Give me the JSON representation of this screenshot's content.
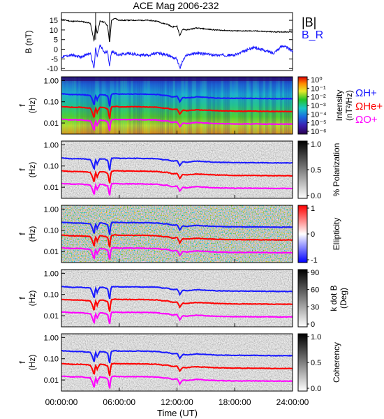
{
  "figure": {
    "title": "ACE Mag 2006-232",
    "xlabel": "Time (UT)",
    "x_ticks": [
      "00:00:00",
      "06:00:00",
      "12:00:00",
      "18:00:00",
      "24:00:00"
    ],
    "x_tick_hours": [
      0,
      6,
      12,
      18,
      24
    ],
    "x_range_hours": [
      0,
      24
    ]
  },
  "chart_data": [
    {
      "type": "line",
      "title": "ACE Mag 2006-232",
      "ylabel": "B (nT)",
      "y_ticks": [
        "15",
        "10",
        "5",
        "0",
        "-5",
        "-10"
      ],
      "y_tick_values": [
        15,
        10,
        5,
        0,
        -5,
        -10
      ],
      "ylim": [
        -11,
        19
      ],
      "legend": [
        "|B|",
        "B_R"
      ],
      "legend_placement": "right",
      "series": [
        {
          "name": "|B|",
          "color": "#000000",
          "x": [
            0,
            1,
            2,
            3,
            3.4,
            3.55,
            3.7,
            4,
            4.5,
            4.8,
            5.0,
            5.2,
            5.6,
            6,
            7,
            8,
            9,
            10,
            10.5,
            11,
            11.5,
            12,
            12.3,
            12.6,
            13,
            14,
            16,
            18,
            20,
            22,
            24
          ],
          "values": [
            15.5,
            14.5,
            14.5,
            13.5,
            4,
            13,
            8,
            14.5,
            14,
            12,
            3,
            15,
            16,
            15,
            15,
            15,
            15,
            14.5,
            13.5,
            13,
            11.5,
            12,
            7,
            10.5,
            10,
            11,
            10,
            9.5,
            9.5,
            9,
            9
          ]
        },
        {
          "name": "B_R",
          "color": "#1a1aff",
          "x": [
            0,
            1,
            2,
            3,
            3.4,
            3.55,
            3.7,
            4,
            4.5,
            4.8,
            5.0,
            5.2,
            6,
            7,
            8,
            9,
            10,
            11,
            12,
            12.3,
            12.6,
            13,
            14,
            16,
            18,
            20,
            22,
            23,
            24
          ],
          "values": [
            -4,
            -3,
            -4,
            -2,
            -10,
            1,
            -4,
            2,
            -2,
            -1,
            -9,
            -1,
            -3,
            -2,
            -3,
            -3,
            -2,
            -3,
            -5,
            -10,
            -6,
            -3,
            -2,
            -3,
            -3,
            1,
            -2,
            2,
            -1
          ]
        }
      ]
    },
    {
      "type": "heatmap",
      "ylabel": "f (Hz)",
      "yscale": "log",
      "y_ticks": [
        "1.00",
        "0.10",
        "0.01"
      ],
      "y_tick_values": [
        1,
        0.1,
        0.01
      ],
      "ylim": [
        0.003,
        1.5
      ],
      "colorbar_label": "Intensity (nT²/Hz)",
      "colorbar_ticks": [
        "10⁰",
        "10⁻¹",
        "10⁻²",
        "10⁻³",
        "10⁻⁴",
        "10⁻⁵",
        "10⁻⁶"
      ],
      "colorscale": "rainbow",
      "legend": [
        "ΩH+",
        "ΩHe+",
        "ΩO+"
      ],
      "legend_placement": "right"
    },
    {
      "type": "heatmap",
      "ylabel": "f (Hz)",
      "yscale": "log",
      "y_ticks": [
        "1.00",
        "0.10",
        "0.01"
      ],
      "y_tick_values": [
        1,
        0.1,
        0.01
      ],
      "ylim": [
        0.003,
        1.5
      ],
      "colorbar_label": "% Polarization",
      "colorbar_ticks": [
        "1.0",
        "0.5",
        "0.0"
      ],
      "colorscale": "gray"
    },
    {
      "type": "heatmap",
      "ylabel": "f (Hz)",
      "yscale": "log",
      "y_ticks": [
        "1.00",
        "0.10",
        "0.01"
      ],
      "y_tick_values": [
        1,
        0.1,
        0.01
      ],
      "ylim": [
        0.003,
        1.5
      ],
      "colorbar_label": "Ellipticity",
      "colorbar_ticks": [
        "1",
        "0",
        "-1"
      ],
      "colorscale": "blue-white-red"
    },
    {
      "type": "heatmap",
      "ylabel": "f (Hz)",
      "yscale": "log",
      "y_ticks": [
        "1.00",
        "0.10",
        "0.01"
      ],
      "y_tick_values": [
        1,
        0.1,
        0.01
      ],
      "ylim": [
        0.003,
        1.5
      ],
      "colorbar_label": "k dot B (Deg)",
      "colorbar_ticks": [
        "90",
        "60",
        "30",
        "0"
      ],
      "colorscale": "gray"
    },
    {
      "type": "heatmap",
      "ylabel": "f (Hz)",
      "yscale": "log",
      "y_ticks": [
        "1.00",
        "0.10",
        "0.01"
      ],
      "y_tick_values": [
        1,
        0.1,
        0.01
      ],
      "ylim": [
        0.003,
        1.5
      ],
      "colorbar_label": "Coherency",
      "colorbar_ticks": [
        "1.0",
        "0.5",
        "0.0"
      ],
      "colorscale": "gray"
    }
  ],
  "gyrofrequency_lines": {
    "hours": [
      0,
      1,
      2,
      3,
      3.4,
      3.55,
      3.7,
      4,
      4.5,
      4.8,
      5.0,
      5.2,
      5.6,
      6,
      8,
      10,
      10.5,
      11,
      11.5,
      12,
      12.3,
      12.6,
      13,
      14,
      16,
      18,
      20,
      22,
      24
    ],
    "series": [
      {
        "name": "ΩH+",
        "color": "#1a1aff",
        "values": [
          0.24,
          0.22,
          0.22,
          0.2,
          0.06,
          0.2,
          0.12,
          0.22,
          0.21,
          0.18,
          0.045,
          0.23,
          0.24,
          0.23,
          0.23,
          0.22,
          0.2,
          0.2,
          0.17,
          0.18,
          0.1,
          0.16,
          0.15,
          0.17,
          0.15,
          0.145,
          0.145,
          0.14,
          0.14
        ]
      },
      {
        "name": "ΩHe+",
        "color": "#ff0000",
        "values": [
          0.06,
          0.055,
          0.055,
          0.05,
          0.015,
          0.05,
          0.03,
          0.055,
          0.052,
          0.045,
          0.011,
          0.058,
          0.06,
          0.058,
          0.058,
          0.055,
          0.05,
          0.05,
          0.043,
          0.045,
          0.025,
          0.04,
          0.038,
          0.042,
          0.038,
          0.036,
          0.036,
          0.035,
          0.035
        ]
      },
      {
        "name": "ΩO+",
        "color": "#ff00ff",
        "values": [
          0.015,
          0.014,
          0.014,
          0.0125,
          0.0038,
          0.0125,
          0.0075,
          0.0138,
          0.013,
          0.0113,
          0.0031,
          0.0144,
          0.015,
          0.0144,
          0.0144,
          0.0138,
          0.0125,
          0.0125,
          0.0106,
          0.0113,
          0.0063,
          0.01,
          0.0094,
          0.0106,
          0.0094,
          0.009,
          0.009,
          0.0088,
          0.0088
        ]
      }
    ]
  },
  "colors": {
    "axis": "#000000",
    "label_text": "#000000",
    "blue_label": "#1a1aff",
    "red_label": "#ff0000",
    "magenta_label": "#ff00ff"
  }
}
